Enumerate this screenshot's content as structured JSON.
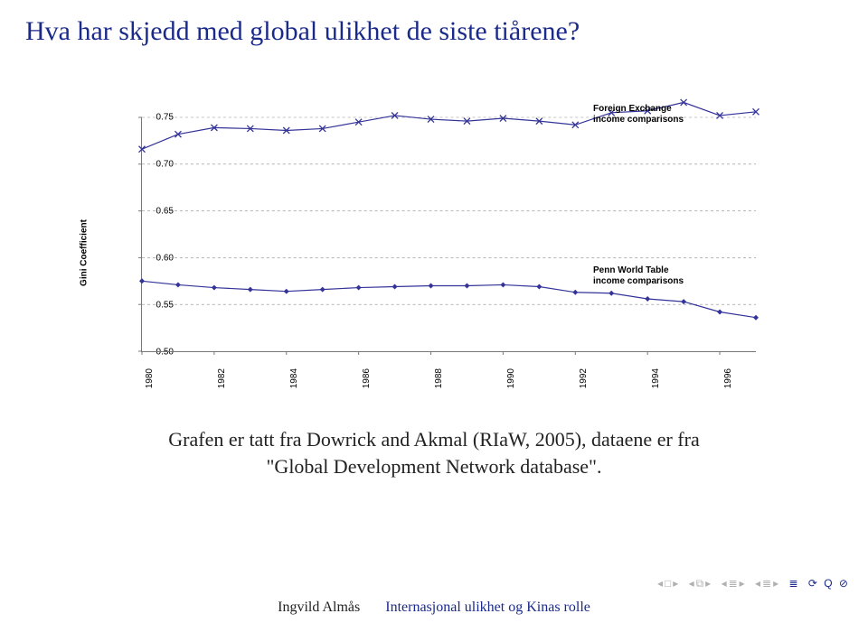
{
  "title": "Hva har skjedd med global ulikhet de siste tiårene?",
  "chart": {
    "type": "line",
    "ylabel": "Gini Coefficient",
    "ylim": [
      0.5,
      0.75
    ],
    "ytick_step": 0.05,
    "yticks": [
      "0.50",
      "0.55",
      "0.60",
      "0.65",
      "0.70",
      "0.75"
    ],
    "xticks": [
      "1980",
      "1982",
      "1984",
      "1986",
      "1988",
      "1990",
      "1992",
      "1994",
      "1996"
    ],
    "x_years": [
      1980,
      1981,
      1982,
      1983,
      1984,
      1985,
      1986,
      1987,
      1988,
      1989,
      1990,
      1991,
      1992,
      1993,
      1994,
      1995,
      1996,
      1997
    ],
    "grid_color": "#8a8a8a",
    "grid_dash": "3,3",
    "axis_color": "#777777",
    "background_color": "#ffffff",
    "label_fontsize": 10,
    "series": [
      {
        "name": "Foreign Exchange income comparisons",
        "label_lines": [
          "Foreign Exchange",
          "income comparisons"
        ],
        "color": "#333399",
        "marker": "x",
        "marker_size": 7,
        "line_width": 1.2,
        "values": [
          0.716,
          0.732,
          0.739,
          0.738,
          0.736,
          0.738,
          0.745,
          0.752,
          0.748,
          0.746,
          0.749,
          0.746,
          0.742,
          0.755,
          0.757,
          0.766,
          0.752,
          0.756
        ],
        "label_pos_year": 1992.5,
        "label_pos_value": 0.747
      },
      {
        "name": "Penn World Table income comparisons",
        "label_lines": [
          "Penn World Table",
          "income comparisons"
        ],
        "color": "#333399",
        "marker": "diamond",
        "marker_size": 6,
        "line_width": 1.2,
        "values": [
          0.575,
          0.571,
          0.568,
          0.566,
          0.564,
          0.566,
          0.568,
          0.569,
          0.57,
          0.57,
          0.571,
          0.569,
          0.563,
          0.562,
          0.556,
          0.553,
          0.542,
          0.536
        ],
        "label_pos_year": 1992.5,
        "label_pos_value": 0.575
      }
    ]
  },
  "caption_line1": "Grafen er tatt fra Dowrick and Akmal (RIaW, 2005), dataene er fra",
  "caption_line2": "\"Global Development Network database\".",
  "footer": {
    "author": "Ingvild Almås",
    "talk": "Internasjonal ulikhet og Kinas rolle"
  }
}
